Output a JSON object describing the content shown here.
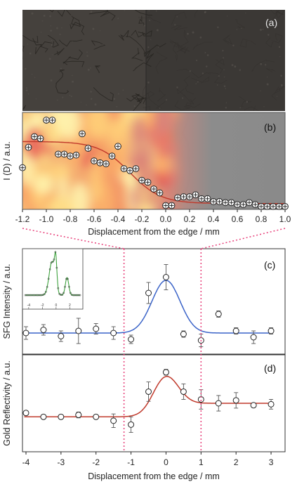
{
  "panel_labels": {
    "a": "(a)",
    "b": "(b)",
    "c": "(c)",
    "d": "(d)"
  },
  "colors": {
    "fit_red": "#c0392b",
    "fit_blue": "#3a63c8",
    "inset_green": "#3fa33f",
    "guide_pink": "#e8407a"
  },
  "chart_data": [
    {
      "panel": "b",
      "type": "scatter",
      "xlabel": "Displacement from the edge / mm",
      "ylabel": "I (D) / a.u.",
      "xlim": [
        -1.2,
        1.0
      ],
      "ylim": [
        0,
        1
      ],
      "x_ticks": [
        "-1.2",
        "-1.0",
        "-0.8",
        "-0.6",
        "-0.4",
        "-0.2",
        "0.0",
        "0.2",
        "0.4",
        "0.6",
        "0.8",
        "1.0"
      ],
      "points": {
        "x": [
          -1.2,
          -1.15,
          -1.1,
          -1.05,
          -1.0,
          -0.95,
          -0.9,
          -0.85,
          -0.8,
          -0.75,
          -0.7,
          -0.65,
          -0.6,
          -0.55,
          -0.5,
          -0.45,
          -0.4,
          -0.35,
          -0.3,
          -0.25,
          -0.2,
          -0.15,
          -0.1,
          -0.05,
          0.0,
          0.05,
          0.1,
          0.15,
          0.2,
          0.25,
          0.3,
          0.35,
          0.4,
          0.45,
          0.5,
          0.55,
          0.6,
          0.65,
          0.7,
          0.75,
          0.8,
          0.85,
          0.9,
          0.95,
          1.0
        ],
        "y": [
          0.43,
          0.64,
          0.75,
          0.73,
          0.92,
          0.92,
          0.57,
          0.57,
          0.55,
          0.56,
          0.78,
          0.63,
          0.5,
          0.48,
          0.47,
          0.55,
          0.65,
          0.42,
          0.4,
          0.42,
          0.3,
          0.28,
          0.21,
          0.17,
          0.04,
          0.04,
          0.12,
          0.13,
          0.13,
          0.15,
          0.11,
          0.11,
          0.08,
          0.08,
          0.07,
          0.07,
          0.05,
          0.05,
          0.07,
          0.05,
          0.03,
          0.03,
          0.03,
          0.03,
          0.03
        ]
      },
      "fit": {
        "type": "sigmoid",
        "high": 0.7,
        "low": 0.06,
        "center": -0.3,
        "width": 0.13
      }
    },
    {
      "panel": "c",
      "type": "scatter",
      "xlabel": "",
      "ylabel": "SFG Intensity / a.u.",
      "xlim": [
        -4.1,
        3.4
      ],
      "ylim": [
        0,
        1
      ],
      "points": {
        "x": [
          -4.0,
          -3.5,
          -3.0,
          -2.5,
          -2.0,
          -1.5,
          -1.0,
          -0.5,
          0.0,
          0.5,
          1.0,
          1.5,
          2.0,
          2.5,
          3.0
        ],
        "y": [
          0.2,
          0.23,
          0.17,
          0.22,
          0.24,
          0.2,
          0.14,
          0.58,
          0.73,
          0.19,
          0.13,
          0.38,
          0.22,
          0.16,
          0.22
        ],
        "err": [
          0.06,
          0.05,
          0.05,
          0.12,
          0.05,
          0.06,
          0.04,
          0.1,
          0.12,
          0.03,
          0.06,
          0.03,
          0.03,
          0.06,
          0.03
        ]
      },
      "fit": {
        "type": "gaussian",
        "baseline": 0.2,
        "amplitude": 0.5,
        "center": 0.0,
        "sigma": 0.4
      },
      "inset": {
        "type": "line",
        "x_ticks": [
          "-4",
          "-2",
          "0",
          "2"
        ]
      }
    },
    {
      "panel": "d",
      "type": "scatter",
      "xlabel": "Displacement from the edge / mm",
      "ylabel": "Gold Reflectivity / a.u.",
      "xlim": [
        -4.1,
        3.4
      ],
      "ylim": [
        0,
        1
      ],
      "x_ticks": [
        "-4",
        "-3",
        "-2",
        "-1",
        "0",
        "1",
        "2",
        "3"
      ],
      "points": {
        "x": [
          -4.0,
          -3.5,
          -3.0,
          -2.5,
          -2.0,
          -1.5,
          -1.0,
          -0.5,
          0.0,
          0.5,
          1.0,
          1.5,
          2.0,
          2.5,
          3.0
        ],
        "y": [
          0.4,
          0.36,
          0.36,
          0.38,
          0.36,
          0.32,
          0.28,
          0.62,
          0.82,
          0.62,
          0.54,
          0.5,
          0.53,
          0.48,
          0.49
        ],
        "err": [
          0.02,
          0.02,
          0.02,
          0.03,
          0.02,
          0.07,
          0.08,
          0.1,
          0.03,
          0.08,
          0.1,
          0.08,
          0.08,
          0.02,
          0.05
        ]
      },
      "fit": {
        "type": "gaussian_step",
        "baseline": 0.36,
        "plateau": 0.5,
        "amplitude": 0.29,
        "center": 0.0,
        "sigma": 0.35
      }
    }
  ]
}
